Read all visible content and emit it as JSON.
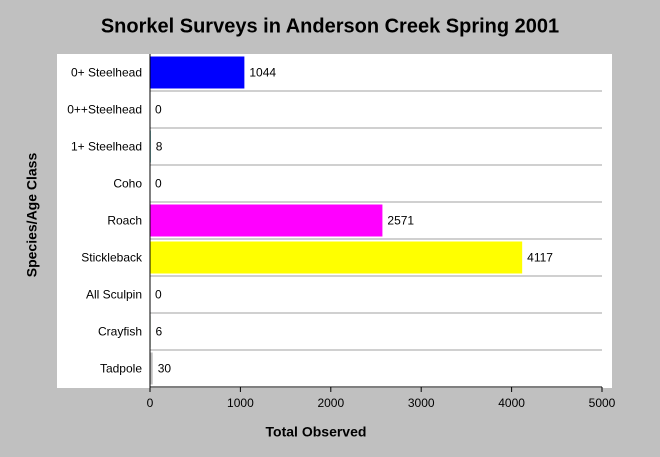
{
  "chart_data": {
    "type": "hbar",
    "title": "Snorkel Surveys in Anderson Creek Spring 2001",
    "xlabel": "Total Observed",
    "ylabel": "Species/Age Class",
    "categories": [
      "0+ Steelhead",
      "0++Steelhead",
      "1+ Steelhead",
      "Coho",
      "Roach",
      "Stickleback",
      "All Sculpin",
      "Crayfish",
      "Tadpole"
    ],
    "values": [
      1044,
      0,
      8,
      0,
      2571,
      4117,
      0,
      6,
      30
    ],
    "colors": [
      "#0000ff",
      "#00ffff",
      "#008080",
      "#808080",
      "#ff00ff",
      "#ffff00",
      "#800000",
      "#006400",
      "#c0c0c0"
    ],
    "xlim": [
      0,
      5000
    ],
    "xticks": [
      0,
      1000,
      2000,
      3000,
      4000,
      5000
    ]
  }
}
